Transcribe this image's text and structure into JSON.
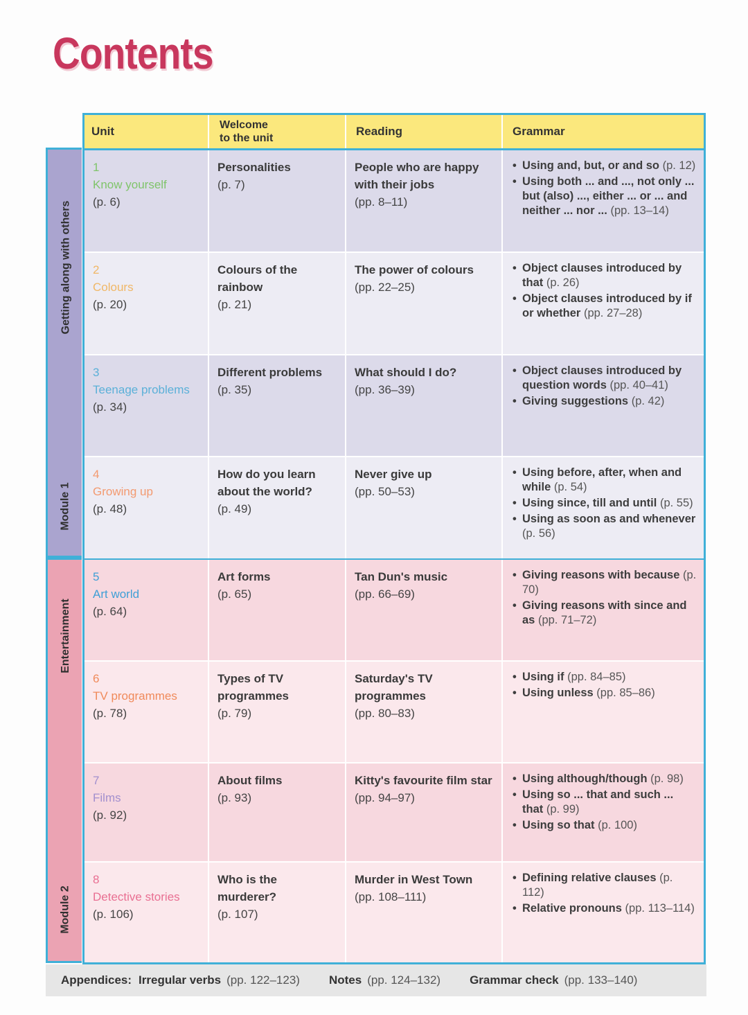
{
  "title": "Contents",
  "modules": [
    {
      "label": "Module 1",
      "theme": "Getting along with others"
    },
    {
      "label": "Module 2",
      "theme": "Entertainment"
    }
  ],
  "headers": {
    "unit": "Unit",
    "welcome_line1": "Welcome",
    "welcome_line2": "to the unit",
    "reading": "Reading",
    "grammar": "Grammar"
  },
  "units": [
    {
      "num": "1",
      "name": "Know yourself",
      "page": "(p. 6)",
      "color": "#7fc46a",
      "welcome": "Personalities",
      "welcome_page": "(p. 7)",
      "reading": "People who are happy with their jobs",
      "reading_page": "(pp. 8–11)",
      "grammar": [
        {
          "text": "Using and, but, or and so",
          "page": "(p. 12)"
        },
        {
          "text": "Using both ... and ..., not only ... but (also) ..., either ... or ... and neither ... nor ...",
          "page": "(pp. 13–14)"
        }
      ],
      "bg": "#dcdaea"
    },
    {
      "num": "2",
      "name": "Colours",
      "page": "(p. 20)",
      "color": "#f0b766",
      "welcome": "Colours of the rainbow",
      "welcome_page": "(p. 21)",
      "reading": "The power of colours",
      "reading_page": "(pp. 22–25)",
      "grammar": [
        {
          "text": "Object clauses introduced by that",
          "page": "(p. 26)"
        },
        {
          "text": "Object clauses introduced by if or whether",
          "page": "(pp. 27–28)"
        }
      ],
      "bg": "#edecf4"
    },
    {
      "num": "3",
      "name": "Teenage problems",
      "page": "(p. 34)",
      "color": "#5bb0d8",
      "welcome": "Different problems",
      "welcome_page": "(p. 35)",
      "reading": "What should I do?",
      "reading_page": "(pp. 36–39)",
      "grammar": [
        {
          "text": "Object clauses introduced by question words",
          "page": "(pp. 40–41)"
        },
        {
          "text": "Giving suggestions",
          "page": "(p. 42)"
        }
      ],
      "bg": "#dcdaea"
    },
    {
      "num": "4",
      "name": "Growing up",
      "page": "(p. 48)",
      "color": "#f39a70",
      "welcome": "How do you learn about the world?",
      "welcome_page": "(p. 49)",
      "reading": "Never give up",
      "reading_page": "(pp. 50–53)",
      "grammar": [
        {
          "text": "Using before, after, when and while",
          "page": "(p. 54)"
        },
        {
          "text": "Using since, till and until",
          "page": "(p. 55)"
        },
        {
          "text": "Using as soon as and whenever",
          "page": "(p. 56)"
        }
      ],
      "bg": "#edecf4"
    },
    {
      "num": "5",
      "name": "Art world",
      "page": "(p. 64)",
      "color": "#3f9fd6",
      "welcome": "Art forms",
      "welcome_page": "(p. 65)",
      "reading": "Tan Dun's music",
      "reading_page": "(pp. 66–69)",
      "grammar": [
        {
          "text": "Giving reasons with because",
          "page": "(p. 70)"
        },
        {
          "text": "Giving reasons with since and as",
          "page": "(pp. 71–72)"
        }
      ],
      "bg": "#f7d8df"
    },
    {
      "num": "6",
      "name": "TV programmes",
      "page": "(p. 78)",
      "color": "#f08a5a",
      "welcome": "Types of TV programmes",
      "welcome_page": "(p. 79)",
      "reading": "Saturday's TV programmes",
      "reading_page": "(pp. 80–83)",
      "grammar": [
        {
          "text": "Using if",
          "page": "(pp. 84–85)"
        },
        {
          "text": "Using unless",
          "page": "(pp. 85–86)"
        }
      ],
      "bg": "#fbe8ec"
    },
    {
      "num": "7",
      "name": "Films",
      "page": "(p. 92)",
      "color": "#a28fce",
      "welcome": "About films",
      "welcome_page": "(p. 93)",
      "reading": "Kitty's favourite film star",
      "reading_page": "(pp. 94–97)",
      "grammar": [
        {
          "text": "Using although/though",
          "page": "(p. 98)"
        },
        {
          "text": "Using so ... that and such ... that",
          "page": "(p. 99)"
        },
        {
          "text": "Using so that",
          "page": "(p. 100)"
        }
      ],
      "bg": "#f7d8df"
    },
    {
      "num": "8",
      "name": "Detective stories",
      "page": "(p. 106)",
      "color": "#e96f92",
      "welcome": "Who is the murderer?",
      "welcome_page": "(p. 107)",
      "reading": "Murder in West Town",
      "reading_page": "(pp. 108–111)",
      "grammar": [
        {
          "text": "Defining relative clauses",
          "page": "(p. 112)"
        },
        {
          "text": "Relative pronouns",
          "page": "(pp. 113–114)"
        }
      ],
      "bg": "#fbe8ec"
    }
  ],
  "footer": {
    "appendices_label": "Appendices:",
    "irregular_verbs": "Irregular verbs",
    "irregular_verbs_pages": "(pp. 122–123)",
    "notes": "Notes",
    "notes_pages": "(pp. 124–132)",
    "grammar_check": "Grammar check",
    "grammar_check_pages": "(pp. 133–140)"
  }
}
